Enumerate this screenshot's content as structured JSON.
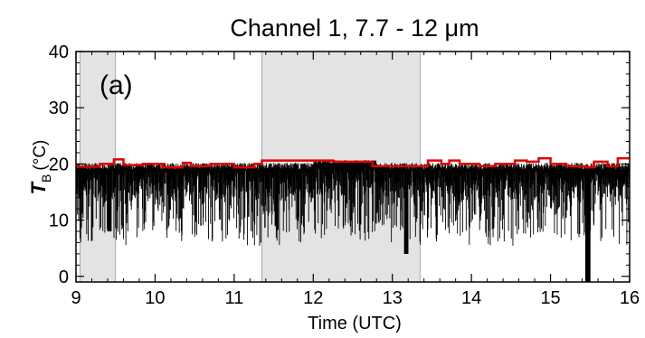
{
  "chart_data": {
    "type": "line",
    "title": "Channel 1, 7.7 - 12 μm",
    "panel_label": "(a)",
    "ylabel_main": "T",
    "ylabel_sub": "B",
    "ylabel_unit": "(°C)",
    "xlabel": "Time (UTC)",
    "xlim": [
      9,
      16
    ],
    "ylim": [
      -1,
      40
    ],
    "xticks": [
      "9",
      "10",
      "11",
      "12",
      "13",
      "14",
      "15",
      "16"
    ],
    "yticks": [
      "0",
      "10",
      "20",
      "30",
      "40"
    ],
    "grid": false,
    "shaded_intervals": [
      [
        9.05,
        9.5
      ],
      [
        11.35,
        13.35
      ]
    ],
    "series": [
      {
        "color": "#e00000",
        "x": [
          9.0,
          9.3,
          9.3,
          9.48,
          9.48,
          9.6,
          9.6,
          9.85,
          9.85,
          10.1,
          10.1,
          10.35,
          10.35,
          10.45,
          10.45,
          10.7,
          10.7,
          11.0,
          11.0,
          11.25,
          11.25,
          11.35,
          11.35,
          12.25,
          12.25,
          12.75,
          12.75,
          13.45,
          13.45,
          13.62,
          13.62,
          13.72,
          13.72,
          13.85,
          13.85,
          14.1,
          14.1,
          14.3,
          14.3,
          14.55,
          14.55,
          14.7,
          14.7,
          14.85,
          14.85,
          15.0,
          15.0,
          15.2,
          15.2,
          15.45,
          15.45,
          15.55,
          15.55,
          15.72,
          15.72,
          15.85,
          15.85,
          16.0
        ],
        "y": [
          19.5,
          19.5,
          20.0,
          20.0,
          20.8,
          20.8,
          19.8,
          19.8,
          20.0,
          20.0,
          19.4,
          19.4,
          20.2,
          20.2,
          19.6,
          19.6,
          20.0,
          20.0,
          19.4,
          19.4,
          20.0,
          20.0,
          20.6,
          20.6,
          20.4,
          20.4,
          19.6,
          19.6,
          20.6,
          20.6,
          20.0,
          20.0,
          20.6,
          20.6,
          20.0,
          20.0,
          19.6,
          19.6,
          20.0,
          20.0,
          20.6,
          20.6,
          20.4,
          20.4,
          21.0,
          21.0,
          20.0,
          20.0,
          19.6,
          19.6,
          19.4,
          19.4,
          20.4,
          20.4,
          19.6,
          19.6,
          21.0,
          21.0
        ]
      }
    ]
  }
}
